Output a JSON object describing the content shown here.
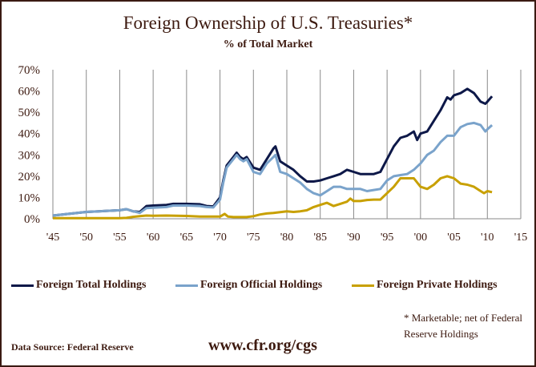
{
  "chart_data": {
    "type": "line",
    "title": "Foreign Ownership of U.S. Treasuries*",
    "subtitle": "% of  Total Market",
    "xlabel": "",
    "ylabel": "",
    "xlim": [
      1945,
      2015
    ],
    "ylim": [
      0,
      70
    ],
    "x_ticks": [
      "'45",
      "'50",
      "'55",
      "'60",
      "'65",
      "'70",
      "'75",
      "'80",
      "'85",
      "'90",
      "'95",
      "'00",
      "'05",
      "'10",
      "'15"
    ],
    "y_ticks": [
      "0%",
      "10%",
      "20%",
      "30%",
      "40%",
      "50%",
      "60%",
      "70%"
    ],
    "grid": "vertical",
    "legend_position": "bottom",
    "series": [
      {
        "name": "Foreign Total Holdings",
        "color": "#0d1848",
        "x": [
          1945,
          1950,
          1955,
          1956,
          1957,
          1958,
          1959,
          1960,
          1962,
          1963,
          1965,
          1967,
          1968,
          1969,
          1970,
          1970.5,
          1971,
          1972,
          1972.5,
          1973,
          1973.5,
          1974,
          1975,
          1976,
          1977,
          1978,
          1978.3,
          1979,
          1980,
          1981,
          1982,
          1983,
          1984,
          1985,
          1986,
          1987,
          1988,
          1989,
          1990,
          1991,
          1992,
          1993,
          1994,
          1995,
          1996,
          1997,
          1998,
          1999,
          1999.5,
          2000,
          2001,
          2002,
          2003,
          2004,
          2004.5,
          2005,
          2006,
          2007,
          2008,
          2009,
          2009.7,
          2010,
          2010.7
        ],
        "values": [
          1.5,
          3.2,
          4.0,
          4.5,
          3.5,
          3.2,
          6.0,
          6.2,
          6.5,
          7.0,
          7.0,
          6.8,
          6.0,
          5.8,
          10,
          18,
          25,
          29,
          31,
          29,
          28,
          29,
          24,
          23,
          28,
          33,
          34,
          27,
          25,
          23,
          20,
          17.5,
          17.5,
          18,
          19,
          20,
          21,
          23,
          22,
          21,
          21,
          21,
          22,
          28,
          34,
          38,
          39,
          41,
          37,
          40,
          41,
          46,
          51,
          57,
          56,
          58,
          59,
          61,
          59,
          55,
          54,
          55,
          57.5
        ]
      },
      {
        "name": "Foreign Official Holdings",
        "color": "#7aa3cb",
        "x": [
          1945,
          1950,
          1955,
          1956,
          1957,
          1958,
          1959,
          1960,
          1962,
          1963,
          1965,
          1967,
          1968,
          1969,
          1970,
          1970.5,
          1971,
          1972,
          1972.5,
          1973,
          1973.5,
          1974,
          1975,
          1976,
          1977,
          1978,
          1978.3,
          1979,
          1980,
          1981,
          1982,
          1983,
          1984,
          1985,
          1986,
          1987,
          1988,
          1989,
          1990,
          1991,
          1992,
          1993,
          1994,
          1995,
          1996,
          1997,
          1998,
          1999,
          2000,
          2001,
          2002,
          2003,
          2004,
          2005,
          2006,
          2007,
          2008,
          2009,
          2009.7,
          2010,
          2010.7
        ],
        "values": [
          1.5,
          3.2,
          4.0,
          4.5,
          3.5,
          2.8,
          5.0,
          5.2,
          5.5,
          6.2,
          6.2,
          6.0,
          5.5,
          5.3,
          9,
          17,
          24,
          28,
          30,
          28,
          27,
          28,
          22,
          21,
          26,
          29,
          30,
          22,
          21,
          19,
          17,
          14,
          12,
          11,
          13,
          15,
          15,
          14,
          14,
          14,
          13,
          13.5,
          14,
          18,
          20,
          20.5,
          21,
          23,
          26,
          30,
          32,
          36,
          39,
          39,
          43,
          44.5,
          45,
          44,
          41,
          42,
          44
        ]
      },
      {
        "name": "Foreign Private Holdings",
        "color": "#c8a000",
        "x": [
          1945,
          1950,
          1955,
          1956,
          1957,
          1958,
          1959,
          1960,
          1962,
          1965,
          1967,
          1969,
          1970,
          1970.7,
          1971.2,
          1972,
          1974,
          1975,
          1976,
          1977,
          1978,
          1980,
          1981,
          1982,
          1983,
          1984,
          1985,
          1986,
          1987,
          1988,
          1989,
          1989.5,
          1990,
          1991,
          1992,
          1993,
          1994,
          1995,
          1996,
          1997,
          1998,
          1999,
          2000,
          2001,
          2002,
          2003,
          2004,
          2005,
          2006,
          2007,
          2008,
          2009,
          2009.5,
          2010,
          2010.7
        ],
        "values": [
          0.3,
          0.3,
          0.3,
          0.4,
          0.9,
          1.2,
          1.5,
          1.4,
          1.5,
          1.3,
          1.0,
          1.0,
          1.0,
          2.3,
          1.0,
          0.8,
          0.8,
          1.2,
          2.0,
          2.5,
          2.7,
          3.5,
          3.2,
          3.5,
          4.0,
          5.5,
          6.5,
          7.5,
          6.0,
          7.0,
          8.0,
          9.5,
          8.3,
          8.3,
          8.8,
          9.0,
          9.0,
          12,
          15,
          19,
          19,
          19,
          15,
          14,
          16,
          19,
          20,
          19,
          16.5,
          16,
          15,
          13,
          12,
          13,
          12.5
        ]
      }
    ]
  },
  "legend": {
    "total": "Foreign Total Holdings",
    "official": "Foreign Official Holdings",
    "private": "Foreign Private Holdings"
  },
  "footnote": "* Marketable; net of Federal Reserve Holdings",
  "source": "Data Source: Federal Reserve",
  "url": "www.cfr.org/cgs"
}
